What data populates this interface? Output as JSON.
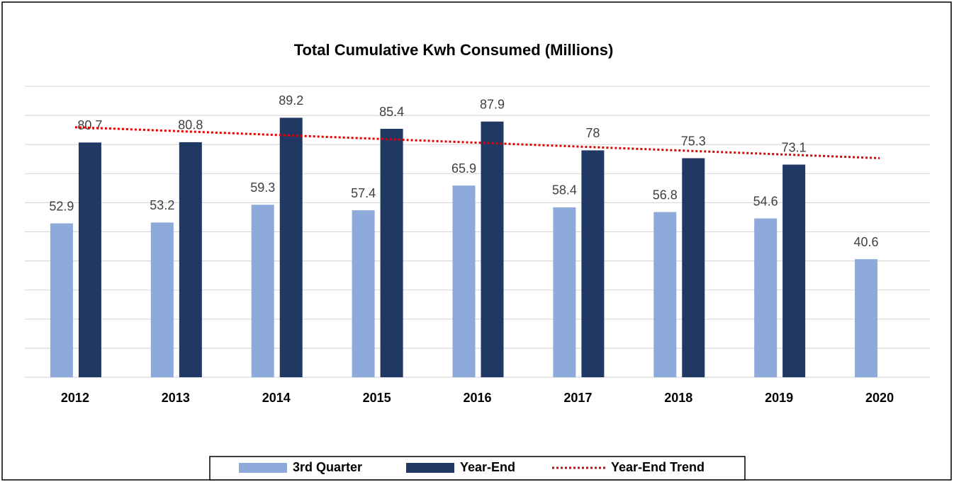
{
  "chart_data": {
    "type": "bar",
    "title": "Total Cumulative Kwh Consumed (Millions)",
    "categories": [
      "2012",
      "2013",
      "2014",
      "2015",
      "2016",
      "2017",
      "2018",
      "2019",
      "2020"
    ],
    "series": [
      {
        "name": "3rd Quarter",
        "color": "#8eaadb",
        "values": [
          52.9,
          53.2,
          59.3,
          57.4,
          65.9,
          58.4,
          56.8,
          54.6,
          40.6
        ]
      },
      {
        "name": "Year-End",
        "color": "#203864",
        "values": [
          80.7,
          80.8,
          89.2,
          85.4,
          87.9,
          78.0,
          75.3,
          73.1,
          null
        ]
      }
    ],
    "trend": {
      "name": "Year-End Trend",
      "color": "#e00000",
      "of_series": 1
    },
    "ylim": [
      0,
      100
    ],
    "yticks": [
      0,
      10,
      20,
      30,
      40,
      50,
      60,
      70,
      80,
      90,
      100
    ],
    "grid": true,
    "legend": "bottom"
  }
}
